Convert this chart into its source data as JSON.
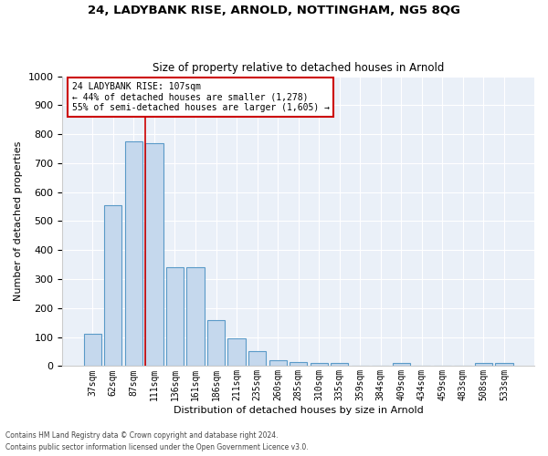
{
  "title_line1": "24, LADYBANK RISE, ARNOLD, NOTTINGHAM, NG5 8QG",
  "title_line2": "Size of property relative to detached houses in Arnold",
  "xlabel": "Distribution of detached houses by size in Arnold",
  "ylabel": "Number of detached properties",
  "categories": [
    "37sqm",
    "62sqm",
    "87sqm",
    "111sqm",
    "136sqm",
    "161sqm",
    "186sqm",
    "211sqm",
    "235sqm",
    "260sqm",
    "285sqm",
    "310sqm",
    "335sqm",
    "359sqm",
    "384sqm",
    "409sqm",
    "434sqm",
    "459sqm",
    "483sqm",
    "508sqm",
    "533sqm"
  ],
  "values": [
    110,
    555,
    775,
    770,
    340,
    340,
    160,
    97,
    52,
    20,
    15,
    10,
    10,
    0,
    0,
    12,
    0,
    0,
    0,
    10,
    10
  ],
  "bar_color": "#c5d8ed",
  "bar_edge_color": "#5a9ac8",
  "property_line_label": "24 LADYBANK RISE: 107sqm",
  "annotation_line2": "← 44% of detached houses are smaller (1,278)",
  "annotation_line3": "55% of semi-detached houses are larger (1,605) →",
  "annotation_box_color": "#ffffff",
  "annotation_box_edge": "#cc0000",
  "property_line_color": "#cc0000",
  "ylim": [
    0,
    1000
  ],
  "yticks": [
    0,
    100,
    200,
    300,
    400,
    500,
    600,
    700,
    800,
    900,
    1000
  ],
  "background_color": "#eaf0f8",
  "footer_line1": "Contains HM Land Registry data © Crown copyright and database right 2024.",
  "footer_line2": "Contains public sector information licensed under the Open Government Licence v3.0."
}
